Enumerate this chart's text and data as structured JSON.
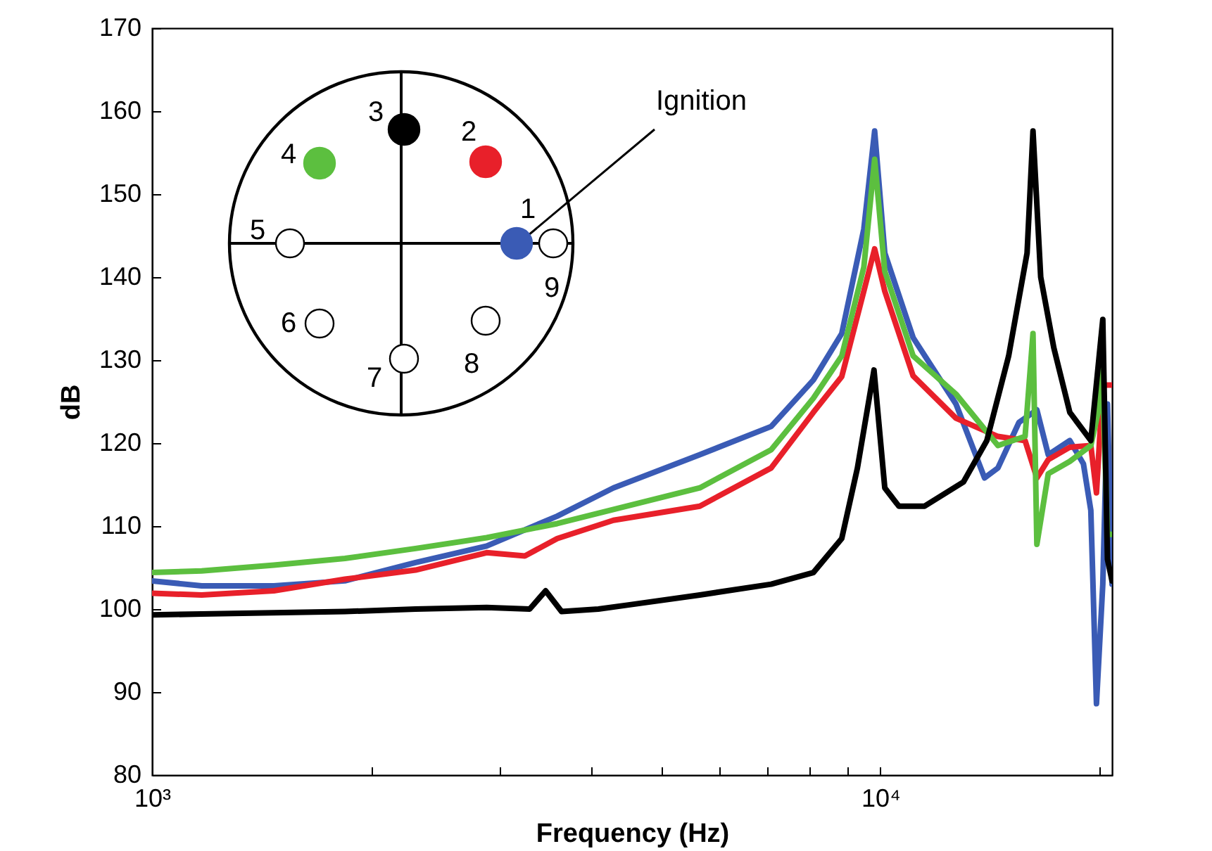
{
  "chart_data": {
    "type": "line",
    "xlabel": "Frequency (Hz)",
    "ylabel": "dB",
    "log": "x",
    "xlim": [
      1000,
      20800
    ],
    "ylim": [
      80,
      170
    ],
    "xticks": [
      {
        "value": 1000,
        "label": "10³"
      },
      {
        "value": 2000,
        "label": null
      },
      {
        "value": 3000,
        "label": null
      },
      {
        "value": 4000,
        "label": null
      },
      {
        "value": 5000,
        "label": null
      },
      {
        "value": 6000,
        "label": null
      },
      {
        "value": 7000,
        "label": null
      },
      {
        "value": 8000,
        "label": null
      },
      {
        "value": 9000,
        "label": null
      },
      {
        "value": 10000,
        "label": "10⁴"
      },
      {
        "value": 20000,
        "label": null
      }
    ],
    "yticks": [
      80,
      90,
      100,
      110,
      120,
      130,
      140,
      150,
      160,
      170
    ],
    "grid": false,
    "marker": "none",
    "line_style": "solid",
    "annotations": [
      "Ignition",
      "1",
      "2",
      "3",
      "4",
      "5",
      "6",
      "7",
      "8",
      "9"
    ],
    "series": [
      {
        "color": "#3a5bb5",
        "x": [
          1000,
          1170,
          1470,
          1840,
          2300,
          2880,
          3600,
          4300,
          5650,
          7080,
          8090,
          8850,
          9490,
          9820,
          10140,
          11090,
          12700,
          13900,
          14500,
          15500,
          16400,
          17000,
          18200,
          19000,
          19450,
          19800,
          20200,
          20500,
          20800
        ],
        "values": [
          103.4,
          102.8,
          102.8,
          103.4,
          105.6,
          107.6,
          111.2,
          114.6,
          118.6,
          122,
          127.6,
          133.2,
          145.8,
          157.6,
          142.9,
          132.7,
          124.7,
          115.8,
          117,
          122.5,
          124,
          118.6,
          120.3,
          117.5,
          111.9,
          88.6,
          103,
          124.7,
          103
        ]
      },
      {
        "color": "#e8202a",
        "x": [
          1000,
          1170,
          1470,
          1840,
          2300,
          2880,
          3250,
          3600,
          4300,
          5650,
          7080,
          8090,
          8850,
          9490,
          9820,
          10140,
          11090,
          12700,
          14500,
          15800,
          16400,
          17000,
          18200,
          19450,
          19800,
          20200,
          20800
        ],
        "values": [
          101.9,
          101.7,
          102.2,
          103.6,
          104.7,
          106.8,
          106.4,
          108.5,
          110.7,
          112.4,
          117,
          123.7,
          128,
          138.3,
          143.4,
          138.3,
          128.1,
          123,
          120.8,
          120.3,
          115.8,
          118,
          119.5,
          119.7,
          114,
          127,
          127
        ]
      },
      {
        "color": "#5cbf3f",
        "x": [
          1000,
          1170,
          1470,
          1840,
          2300,
          2880,
          3600,
          4300,
          5650,
          7080,
          8090,
          8850,
          9490,
          9820,
          10140,
          11090,
          12700,
          14500,
          15800,
          16200,
          16400,
          17000,
          18200,
          19450,
          19900,
          20100,
          20500,
          20800
        ],
        "values": [
          104.4,
          104.6,
          105.3,
          106.1,
          107.3,
          108.6,
          110.3,
          112,
          114.6,
          119.2,
          125.4,
          130.5,
          141.2,
          154.2,
          140.7,
          130.5,
          125.9,
          119.7,
          120.8,
          133.2,
          107.8,
          116.3,
          117.8,
          119.7,
          123.7,
          132.7,
          109,
          109
        ]
      },
      {
        "color": "#000000",
        "x": [
          1000,
          1170,
          1840,
          2300,
          2880,
          3300,
          3470,
          3650,
          4100,
          4510,
          5650,
          7080,
          8090,
          8850,
          9300,
          9800,
          10140,
          10600,
          11500,
          13000,
          14000,
          15000,
          15900,
          16200,
          16600,
          17300,
          18200,
          19450,
          20200,
          20500,
          20800
        ],
        "values": [
          99.3,
          99.4,
          99.7,
          100,
          100.2,
          100,
          102.2,
          99.7,
          100,
          100.5,
          101.7,
          103,
          104.4,
          108.5,
          117,
          128.8,
          114.6,
          112.4,
          112.4,
          115.3,
          120.3,
          130.5,
          142.9,
          157.6,
          140,
          131.5,
          123.7,
          120.3,
          134.9,
          106,
          103.4
        ]
      }
    ]
  }
}
